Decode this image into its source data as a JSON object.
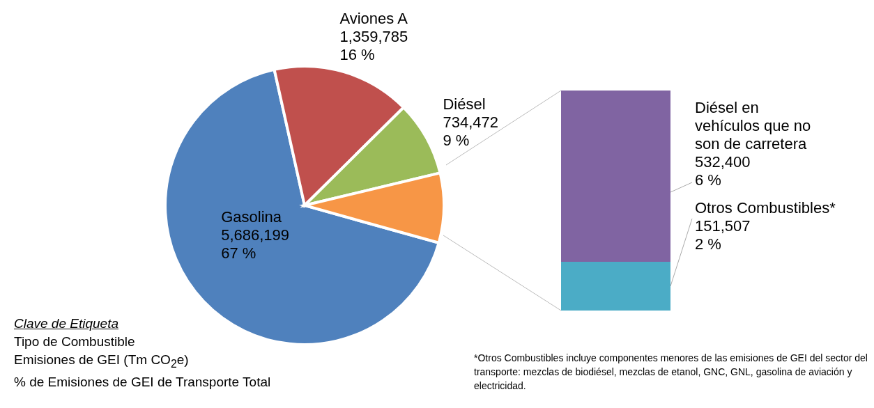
{
  "chart_data": [
    {
      "type": "pie",
      "categories": [
        "Gasolina",
        "Aviones A",
        "Diésel",
        null
      ],
      "values": [
        5686199,
        1359785,
        734472,
        683907
      ],
      "colors": [
        "#4f81bd",
        "#c0504d",
        "#9bbb59",
        "#f79646"
      ],
      "value_labels": [
        "5,686,199\n67 %",
        "1,359,785\n16 %",
        "734,472\n9 %",
        null
      ],
      "annotations": [
        "Clave de Etiqueta",
        "Tipo de Combustible",
        "Emisiones de GEI (Tm CO$_{2}$e)",
        "% de Emisiones de GEI de Transporte Total"
      ]
    },
    {
      "type": "bar",
      "stacked": true,
      "categories": [
        null
      ],
      "series": [
        {
          "name": "Otros Combustibles*",
          "color": "#4bacc6",
          "values": [
            151507
          ],
          "value_labels": [
            "151,507\n2 %"
          ]
        },
        {
          "name": "Diésel en vehículos que no son de carretera",
          "color": "#8064a2",
          "values": [
            532400
          ],
          "value_labels": [
            "532,400\n6 %"
          ]
        }
      ],
      "annotations": [
        "*Otros Combustibles incluye componentes menores de las emisiones de GEI del sector del transporte: mezclas de biodiésel, mezclas de etanol, GNC, GNL, gasolina de aviación y electricidad."
      ]
    }
  ]
}
